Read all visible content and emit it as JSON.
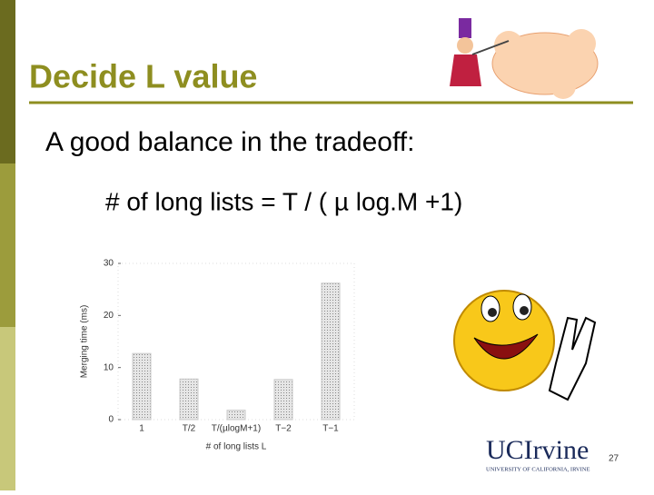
{
  "slide": {
    "title": "Decide L value",
    "bullet": "A good balance in the tradeoff:",
    "sub_bullet": "# of long lists = T /  ( µ log.M +1)",
    "page_number": "27",
    "logo": "UCIrvine",
    "logo_subtitle": "UNIVERSITY OF CALIFORNIA, IRVINE"
  },
  "chart_data": {
    "type": "bar",
    "x_label": "# of long lists L",
    "y_label": "Merging time (ms)",
    "categories": [
      "1",
      "T/2",
      "T/(µlogM+1)",
      "T−2",
      "T−1"
    ],
    "values": [
      12.7,
      7.8,
      1.8,
      7.7,
      26.2
    ],
    "color": "#c8c8c8",
    "ylim": [
      0,
      30
    ],
    "yticks": [
      0,
      10,
      20,
      30
    ],
    "grid": false
  }
}
